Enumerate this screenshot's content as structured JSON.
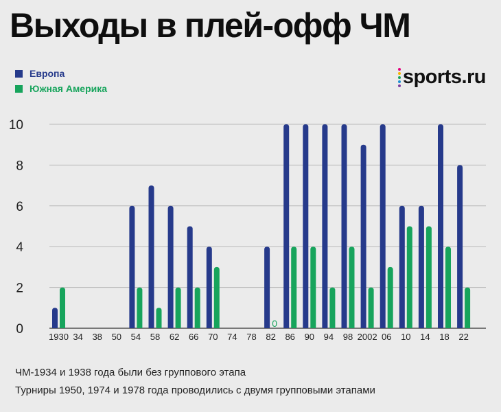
{
  "chart_data": {
    "type": "bar",
    "title": "Выходы в плей-офф ЧМ",
    "categories": [
      "1930",
      "34",
      "38",
      "50",
      "54",
      "58",
      "62",
      "66",
      "70",
      "74",
      "78",
      "82",
      "86",
      "90",
      "94",
      "98",
      "2002",
      "06",
      "10",
      "14",
      "18",
      "22"
    ],
    "series": [
      {
        "name": "Европа",
        "color": "#263a8b",
        "values": [
          1,
          0,
          0,
          0,
          6,
          7,
          6,
          5,
          4,
          0,
          0,
          4,
          10,
          10,
          10,
          10,
          9,
          10,
          6,
          6,
          10,
          8
        ]
      },
      {
        "name": "Южная Америка",
        "color": "#17a45c",
        "values": [
          2,
          0,
          0,
          0,
          2,
          1,
          2,
          2,
          3,
          0,
          0,
          0,
          4,
          4,
          2,
          4,
          2,
          3,
          5,
          5,
          4,
          2
        ]
      }
    ],
    "value_annotations": [
      {
        "category": "82",
        "series": "Южная Америка",
        "label": "0"
      }
    ],
    "ylim": [
      0,
      10
    ],
    "yticks": [
      "0",
      "2",
      "4",
      "6",
      "8",
      "10"
    ],
    "grid": true,
    "legend_position": "top-left",
    "xlabel": "",
    "ylabel": ""
  },
  "brand": {
    "name": "sports.ru",
    "dot_colors": [
      "#e4007c",
      "#f5b400",
      "#17a45c",
      "#1d8fd1",
      "#7b3fa0"
    ]
  },
  "footnotes": [
    "ЧМ-1934 и 1938 года были без группового этапа",
    "Турниры 1950, 1974 и 1978 года проводились с двумя групповыми этапами"
  ]
}
